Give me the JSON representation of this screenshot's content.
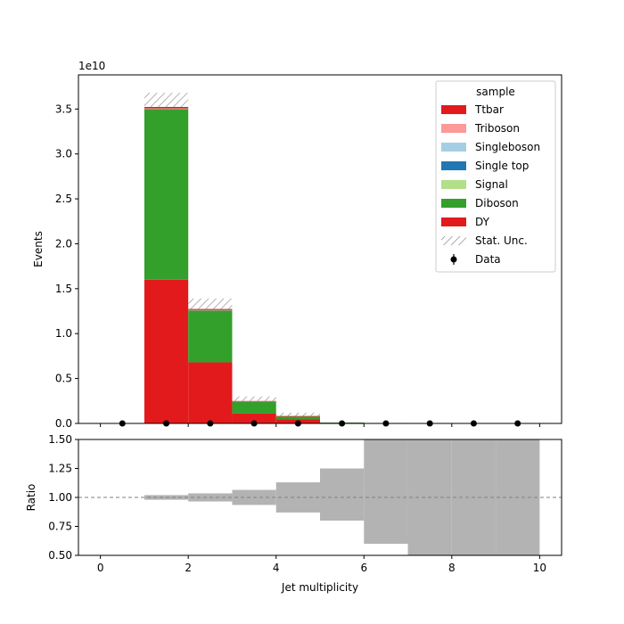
{
  "chart_data": [
    {
      "type": "bar",
      "stacked": true,
      "ylabel": "Events",
      "y_offset_text": "1e10",
      "y_scale": 10000000000,
      "xlim": [
        -0.5,
        10.5
      ],
      "ylim": [
        0,
        38800000000.0
      ],
      "bin_edges": [
        0,
        1,
        2,
        3,
        4,
        5,
        6,
        7,
        8,
        9,
        10
      ],
      "yticks": [
        0,
        0.5,
        1.0,
        1.5,
        2.0,
        2.5,
        3.0,
        3.5
      ],
      "ytick_labels": [
        "0.0",
        "0.5",
        "1.0",
        "1.5",
        "2.0",
        "2.5",
        "3.0",
        "3.5"
      ],
      "series": [
        {
          "name": "DY",
          "color": "#e31a1c",
          "values": [
            0,
            16000000000.0,
            6800000000.0,
            1100000000.0,
            450000000.0,
            50000000.0,
            20000000.0,
            0,
            0,
            0
          ]
        },
        {
          "name": "Diboson",
          "color": "#33a02c",
          "values": [
            0,
            19000000000.0,
            5800000000.0,
            1350000000.0,
            350000000.0,
            50000000.0,
            30000000.0,
            0,
            0,
            0
          ]
        },
        {
          "name": "Signal",
          "color": "#b2df8a",
          "values": [
            0,
            20000000.0,
            10000000.0,
            5000000.0,
            2000000.0,
            0,
            0,
            0,
            0,
            0
          ]
        },
        {
          "name": "Single top",
          "color": "#1f78b4",
          "values": [
            0,
            20000000.0,
            10000000.0,
            5000000.0,
            2000000.0,
            0,
            0,
            0,
            0,
            0
          ]
        },
        {
          "name": "Singleboson",
          "color": "#a6cee3",
          "values": [
            0,
            20000000.0,
            10000000.0,
            5000000.0,
            2000000.0,
            0,
            0,
            0,
            0,
            0
          ]
        },
        {
          "name": "Triboson",
          "color": "#fb9a99",
          "values": [
            0,
            20000000.0,
            10000000.0,
            5000000.0,
            2000000.0,
            0,
            0,
            0,
            0,
            0
          ]
        },
        {
          "name": "Ttbar",
          "color": "#e31a1c",
          "values": [
            0,
            150000000.0,
            100000000.0,
            30000000.0,
            10000000.0,
            0,
            0,
            0,
            0,
            0
          ]
        }
      ],
      "stat_unc": {
        "name": "Stat. Unc.",
        "low": [
          0,
          35200000000.0,
          12700000000.0,
          2500000000.0,
          800000000.0,
          100000000.0,
          50000000.0,
          0,
          0,
          0
        ],
        "high": [
          0,
          36800000000.0,
          13900000000.0,
          3000000000.0,
          1200000000.0,
          120000000.0,
          60000000.0,
          0,
          0,
          0
        ]
      },
      "data": {
        "name": "Data",
        "x": [
          0.5,
          1.5,
          2.5,
          3.5,
          4.5,
          5.5,
          6.5,
          7.5,
          8.5,
          9.5
        ],
        "y": [
          0,
          0,
          0,
          0,
          0,
          0,
          0,
          0,
          0,
          0
        ]
      },
      "legend": {
        "title": "sample",
        "position": "top-right",
        "order": [
          "Ttbar",
          "Triboson",
          "Singleboson",
          "Single top",
          "Signal",
          "Diboson",
          "DY",
          "Stat. Unc.",
          "Data"
        ]
      }
    },
    {
      "type": "area",
      "xlabel": "Jet multiplicity",
      "ylabel": "Ratio",
      "xlim": [
        -0.5,
        10.5
      ],
      "ylim": [
        0.5,
        1.5
      ],
      "xticks": [
        0,
        2,
        4,
        6,
        8,
        10
      ],
      "xtick_labels": [
        "0",
        "2",
        "4",
        "6",
        "8",
        "10"
      ],
      "yticks": [
        0.5,
        0.75,
        1.0,
        1.25,
        1.5
      ],
      "ytick_labels": [
        "0.50",
        "0.75",
        "1.00",
        "1.25",
        "1.50"
      ],
      "reference_line": 1.0,
      "bin_edges": [
        0,
        1,
        2,
        3,
        4,
        5,
        6,
        7,
        8,
        9,
        10
      ],
      "band_low": [
        null,
        0.98,
        0.965,
        0.935,
        0.87,
        0.8,
        0.6,
        0.5,
        0.5,
        0.5
      ],
      "band_high": [
        null,
        1.02,
        1.035,
        1.065,
        1.13,
        1.25,
        1.5,
        1.5,
        1.5,
        1.5
      ]
    }
  ]
}
